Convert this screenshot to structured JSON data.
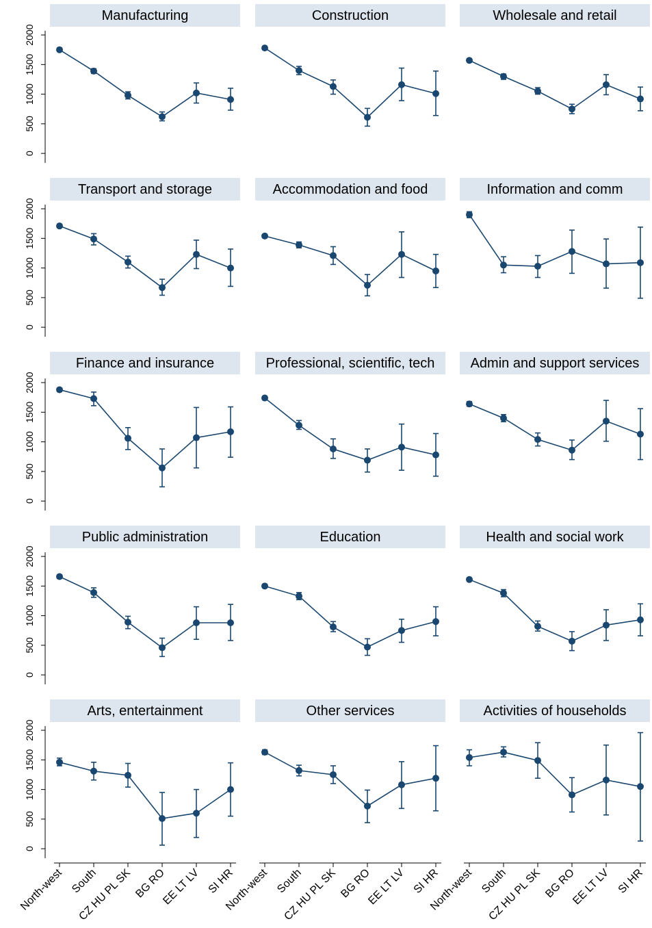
{
  "chart_data": [
    {
      "type": "line",
      "title": "Manufacturing",
      "values": [
        1750,
        1390,
        980,
        620,
        1020,
        910
      ],
      "ci_low": [
        1720,
        1350,
        920,
        550,
        850,
        730
      ],
      "ci_high": [
        1780,
        1430,
        1040,
        700,
        1190,
        1100
      ],
      "ylim": [
        -160,
        2070
      ],
      "yticks": [
        0,
        500,
        1000,
        1500,
        2000
      ],
      "color": "#1a476f"
    },
    {
      "type": "line",
      "title": "Construction",
      "values": [
        1780,
        1400,
        1130,
        610,
        1160,
        1010
      ],
      "ci_low": [
        1750,
        1330,
        1000,
        460,
        890,
        640
      ],
      "ci_high": [
        1810,
        1470,
        1240,
        760,
        1440,
        1390
      ],
      "ylim": [
        -160,
        2070
      ],
      "color": "#1a476f"
    },
    {
      "type": "line",
      "title": "Wholesale and retail",
      "values": [
        1570,
        1300,
        1050,
        750,
        1160,
        920
      ],
      "ci_low": [
        1540,
        1250,
        1000,
        670,
        990,
        720
      ],
      "ci_high": [
        1600,
        1340,
        1110,
        830,
        1330,
        1120
      ],
      "ylim": [
        -160,
        2070
      ],
      "color": "#1a476f"
    },
    {
      "type": "line",
      "title": "Transport and storage",
      "values": [
        1710,
        1490,
        1100,
        670,
        1230,
        1000
      ],
      "ci_low": [
        1680,
        1390,
        1000,
        540,
        990,
        690
      ],
      "ci_high": [
        1740,
        1580,
        1200,
        810,
        1470,
        1320
      ],
      "ylim": [
        -160,
        2070
      ],
      "yticks": [
        0,
        500,
        1000,
        1500,
        2000
      ],
      "color": "#1a476f"
    },
    {
      "type": "line",
      "title": "Accommodation and food",
      "values": [
        1540,
        1390,
        1210,
        710,
        1230,
        950
      ],
      "ci_low": [
        1510,
        1340,
        1060,
        530,
        840,
        670
      ],
      "ci_high": [
        1570,
        1440,
        1360,
        890,
        1610,
        1230
      ],
      "ylim": [
        -160,
        2070
      ],
      "color": "#1a476f"
    },
    {
      "type": "line",
      "title": "Information and comm",
      "values": [
        1900,
        1050,
        1030,
        1280,
        1070,
        1090
      ],
      "ci_low": [
        1850,
        920,
        840,
        910,
        660,
        490
      ],
      "ci_high": [
        1950,
        1190,
        1210,
        1640,
        1490,
        1690
      ],
      "ylim": [
        -160,
        2070
      ],
      "color": "#1a476f"
    },
    {
      "type": "line",
      "title": "Finance and insurance",
      "values": [
        1880,
        1730,
        1060,
        560,
        1070,
        1170
      ],
      "ci_low": [
        1850,
        1610,
        870,
        240,
        560,
        740
      ],
      "ci_high": [
        1910,
        1840,
        1240,
        880,
        1580,
        1590
      ],
      "ylim": [
        -160,
        2070
      ],
      "yticks": [
        0,
        500,
        1000,
        1500,
        2000
      ],
      "color": "#1a476f"
    },
    {
      "type": "line",
      "title": "Professional, scientific, tech",
      "values": [
        1740,
        1280,
        880,
        690,
        910,
        780
      ],
      "ci_low": [
        1710,
        1210,
        720,
        490,
        520,
        420
      ],
      "ci_high": [
        1770,
        1360,
        1050,
        880,
        1300,
        1140
      ],
      "ylim": [
        -160,
        2070
      ],
      "color": "#1a476f"
    },
    {
      "type": "line",
      "title": "Admin and support services",
      "values": [
        1640,
        1400,
        1040,
        860,
        1350,
        1130
      ],
      "ci_low": [
        1600,
        1340,
        930,
        700,
        1010,
        700
      ],
      "ci_high": [
        1680,
        1460,
        1150,
        1030,
        1700,
        1560
      ],
      "ylim": [
        -160,
        2070
      ],
      "color": "#1a476f"
    },
    {
      "type": "line",
      "title": "Public administration",
      "values": [
        1660,
        1390,
        890,
        460,
        880,
        880
      ],
      "ci_low": [
        1630,
        1310,
        780,
        310,
        600,
        580
      ],
      "ci_high": [
        1690,
        1470,
        990,
        620,
        1150,
        1190
      ],
      "ylim": [
        -160,
        2070
      ],
      "yticks": [
        0,
        500,
        1000,
        1500,
        2000
      ],
      "color": "#1a476f"
    },
    {
      "type": "line",
      "title": "Education",
      "values": [
        1500,
        1330,
        810,
        470,
        750,
        900
      ],
      "ci_low": [
        1470,
        1270,
        730,
        330,
        550,
        660
      ],
      "ci_high": [
        1530,
        1390,
        900,
        610,
        940,
        1150
      ],
      "ylim": [
        -160,
        2070
      ],
      "color": "#1a476f"
    },
    {
      "type": "line",
      "title": "Health and social work",
      "values": [
        1610,
        1380,
        820,
        570,
        840,
        930
      ],
      "ci_low": [
        1580,
        1320,
        740,
        410,
        580,
        660
      ],
      "ci_high": [
        1640,
        1440,
        910,
        730,
        1100,
        1200
      ],
      "ylim": [
        -160,
        2070
      ],
      "color": "#1a476f"
    },
    {
      "type": "line",
      "title": "Arts, entertainment",
      "values": [
        1460,
        1310,
        1240,
        510,
        600,
        1000
      ],
      "ci_low": [
        1400,
        1160,
        1040,
        60,
        190,
        550
      ],
      "ci_high": [
        1530,
        1460,
        1440,
        950,
        1000,
        1450
      ],
      "ylim": [
        -160,
        2070
      ],
      "yticks": [
        0,
        500,
        1000,
        1500,
        2000
      ],
      "categories": [
        "North-west",
        "South",
        "CZ HU PL SK",
        "BG RO",
        "EE LT LV",
        "SI HR"
      ],
      "color": "#1a476f"
    },
    {
      "type": "line",
      "title": "Other services",
      "values": [
        1630,
        1320,
        1250,
        720,
        1080,
        1190
      ],
      "ci_low": [
        1590,
        1230,
        1100,
        440,
        680,
        640
      ],
      "ci_high": [
        1670,
        1410,
        1400,
        990,
        1470,
        1740
      ],
      "ylim": [
        -160,
        2070
      ],
      "categories": [
        "North-west",
        "South",
        "CZ HU PL SK",
        "BG RO",
        "EE LT LV",
        "SI HR"
      ],
      "color": "#1a476f"
    },
    {
      "type": "line",
      "title": "Activities of households",
      "values": [
        1540,
        1630,
        1490,
        910,
        1160,
        1050
      ],
      "ci_low": [
        1400,
        1550,
        1190,
        620,
        570,
        130
      ],
      "ci_high": [
        1670,
        1720,
        1790,
        1200,
        1750,
        1960
      ],
      "ylim": [
        -160,
        2070
      ],
      "categories": [
        "North-west",
        "South",
        "CZ HU PL SK",
        "BG RO",
        "EE LT LV",
        "SI HR"
      ],
      "color": "#1a476f"
    }
  ]
}
